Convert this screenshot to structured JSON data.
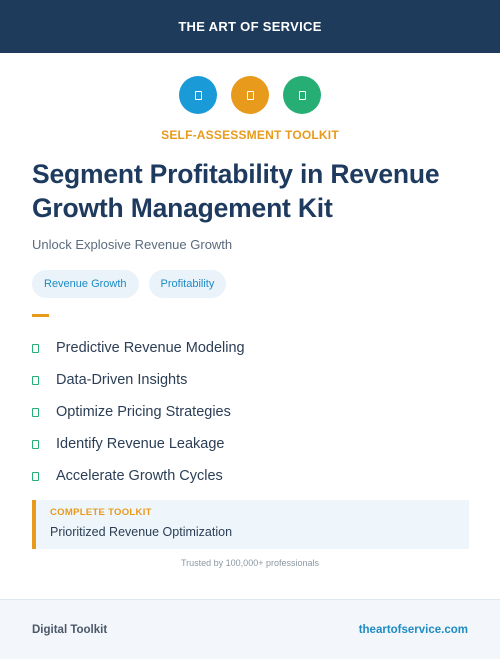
{
  "header": {
    "brand": "THE ART OF SERVICE"
  },
  "badges": [
    {
      "icon": "document-icon",
      "color": "#1a9bd7"
    },
    {
      "icon": "document-icon",
      "color": "#e89a1c"
    },
    {
      "icon": "document-icon",
      "color": "#27ae74"
    }
  ],
  "kicker": "SELF-ASSESSMENT TOOLKIT",
  "title": "Segment Profitability in Revenue Growth Management Kit",
  "subtitle": "Unlock Explosive Revenue Growth",
  "tags": [
    "Revenue Growth",
    "Profitability"
  ],
  "features": [
    "Predictive Revenue Modeling",
    "Data-Driven Insights",
    "Optimize Pricing Strategies",
    "Identify Revenue Leakage",
    "Accelerate Growth Cycles"
  ],
  "callout": {
    "title": "COMPLETE TOOLKIT",
    "value": "Prioritized Revenue Optimization"
  },
  "trust": "Trusted by 100,000+ professionals",
  "footer": {
    "left": "Digital Toolkit",
    "right": "theartofservice.com"
  },
  "colors": {
    "header": "#1f3b5c",
    "accent": "#e89a1c",
    "link": "#1e8bc3",
    "check": "#27ae74"
  }
}
